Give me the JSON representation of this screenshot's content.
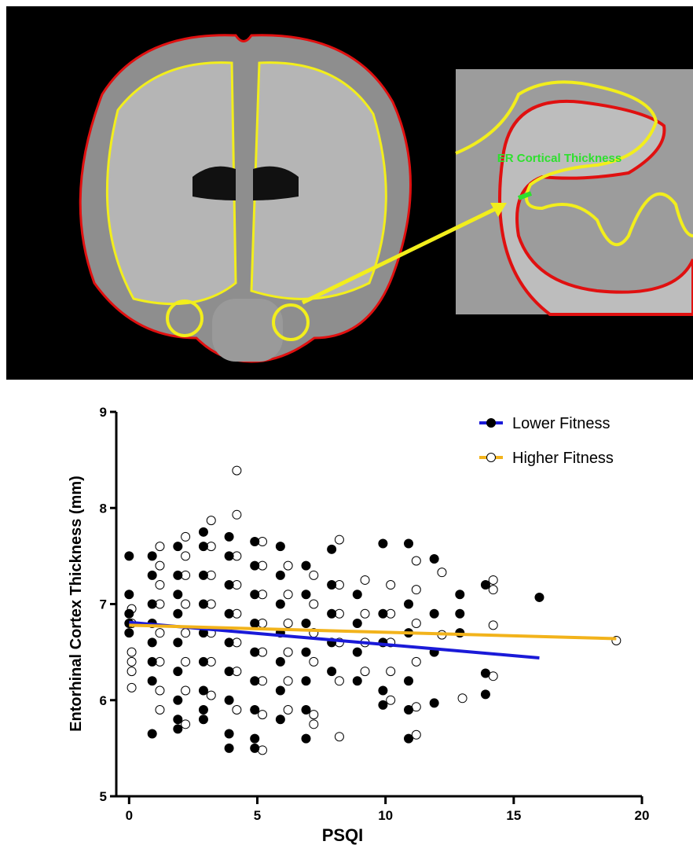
{
  "figure": {
    "inset_label": "ER Cortical Thickness"
  },
  "chart_data": {
    "type": "scatter",
    "x_label": "PSQI",
    "y_label": "Entorhinal Cortex Thickness (mm)",
    "xlim": [
      -0.5,
      20
    ],
    "xticks": [
      0,
      5,
      10,
      15,
      20
    ],
    "ylim": [
      5,
      9
    ],
    "yticks": [
      5,
      6,
      7,
      8,
      9
    ],
    "legend": "upper right",
    "series": [
      {
        "name": "Lower Fitness",
        "color": "#000000",
        "line_color": "#1a1ad8",
        "filled": true,
        "x": [
          0,
          0,
          0,
          0,
          0,
          0.9,
          0.9,
          0.9,
          0.9,
          0.9,
          0.9,
          0.9,
          0.9,
          1.9,
          1.9,
          1.9,
          1.9,
          1.9,
          1.9,
          1.9,
          1.9,
          1.9,
          2.9,
          2.9,
          2.9,
          2.9,
          2.9,
          2.9,
          2.9,
          2.9,
          2.9,
          3.9,
          3.9,
          3.9,
          3.9,
          3.9,
          3.9,
          3.9,
          3.9,
          3.9,
          4.9,
          4.9,
          4.9,
          4.9,
          4.9,
          4.9,
          4.9,
          4.9,
          4.9,
          5.9,
          5.9,
          5.9,
          5.9,
          5.9,
          5.9,
          5.9,
          6.9,
          6.9,
          6.9,
          6.9,
          6.9,
          6.9,
          6.9,
          7.9,
          7.9,
          7.9,
          7.9,
          7.9,
          8.9,
          8.9,
          8.9,
          8.9,
          9.9,
          9.9,
          9.9,
          9.9,
          9.9,
          10.9,
          10.9,
          10.9,
          10.9,
          10.9,
          10.9,
          11.9,
          11.9,
          11.9,
          11.9,
          12.9,
          12.9,
          12.9,
          13.9,
          13.9,
          13.9,
          16
        ],
        "values": [
          7.5,
          7.1,
          6.9,
          6.8,
          6.7,
          5.65,
          7.5,
          7.3,
          7.0,
          6.8,
          6.6,
          6.4,
          6.2,
          7.6,
          7.3,
          7.1,
          6.9,
          6.6,
          6.3,
          6.0,
          5.8,
          5.7,
          7.75,
          7.6,
          7.3,
          7.0,
          6.7,
          6.4,
          6.1,
          5.9,
          5.8,
          7.7,
          7.5,
          7.2,
          6.9,
          6.6,
          6.3,
          6.0,
          5.65,
          5.5,
          7.65,
          7.4,
          7.1,
          6.8,
          6.5,
          6.2,
          5.9,
          5.6,
          5.5,
          7.6,
          7.3,
          7.0,
          6.7,
          6.4,
          6.1,
          5.8,
          7.4,
          7.1,
          6.8,
          6.5,
          6.2,
          5.9,
          5.6,
          7.57,
          7.2,
          6.9,
          6.6,
          6.3,
          7.1,
          6.8,
          6.5,
          6.2,
          7.63,
          6.9,
          6.6,
          6.1,
          5.95,
          7.63,
          7.0,
          6.7,
          6.2,
          5.9,
          5.6,
          7.47,
          6.9,
          6.5,
          5.97,
          7.1,
          6.9,
          6.7,
          7.2,
          6.28,
          6.06,
          7.07
        ],
        "trend": {
          "x": [
            0,
            16
          ],
          "values": [
            6.81,
            6.44
          ]
        }
      },
      {
        "name": "Higher Fitness",
        "color": "#000000",
        "line_color": "#f2b31b",
        "filled": false,
        "x": [
          0.1,
          0.1,
          0.1,
          0.1,
          0.1,
          0.1,
          1.2,
          1.2,
          1.2,
          1.2,
          1.2,
          1.2,
          1.2,
          1.2,
          2.2,
          2.2,
          2.2,
          2.2,
          2.2,
          2.2,
          2.2,
          2.2,
          3.2,
          3.2,
          3.2,
          3.2,
          3.2,
          3.2,
          3.2,
          4.2,
          4.2,
          4.2,
          4.2,
          4.2,
          4.2,
          4.2,
          4.2,
          5.2,
          5.2,
          5.2,
          5.2,
          5.2,
          5.2,
          5.2,
          5.2,
          6.2,
          6.2,
          6.2,
          6.2,
          6.2,
          6.2,
          7.2,
          7.2,
          7.2,
          7.2,
          7.2,
          7.2,
          8.2,
          8.2,
          8.2,
          8.2,
          8.2,
          8.2,
          9.2,
          9.2,
          9.2,
          9.2,
          10.2,
          10.2,
          10.2,
          10.2,
          10.2,
          11.2,
          11.2,
          11.2,
          11.2,
          11.2,
          11.2,
          12.2,
          12.2,
          13,
          14.2,
          14.2,
          14.2,
          14.2,
          19
        ],
        "values": [
          6.95,
          6.8,
          6.5,
          6.4,
          6.3,
          6.13,
          7.6,
          7.4,
          7.2,
          7.0,
          6.7,
          6.4,
          6.1,
          5.9,
          7.7,
          7.5,
          7.3,
          7.0,
          6.7,
          6.4,
          6.1,
          5.75,
          7.87,
          7.6,
          7.3,
          7.0,
          6.7,
          6.4,
          6.05,
          8.39,
          7.93,
          7.5,
          7.2,
          6.9,
          6.6,
          6.3,
          5.9,
          7.65,
          7.4,
          7.1,
          6.8,
          6.5,
          6.2,
          5.85,
          5.48,
          7.4,
          7.1,
          6.8,
          6.5,
          6.2,
          5.9,
          7.3,
          7.0,
          6.7,
          6.4,
          5.85,
          5.75,
          7.67,
          7.2,
          6.9,
          6.6,
          6.2,
          5.62,
          7.25,
          6.9,
          6.6,
          6.3,
          7.2,
          6.9,
          6.6,
          6.3,
          6.0,
          7.45,
          7.15,
          6.8,
          6.4,
          5.93,
          5.64,
          7.33,
          6.68,
          6.02,
          7.25,
          7.15,
          6.78,
          6.25,
          6.62
        ],
        "trend": {
          "x": [
            0,
            19
          ],
          "values": [
            6.78,
            6.64
          ]
        }
      }
    ]
  }
}
